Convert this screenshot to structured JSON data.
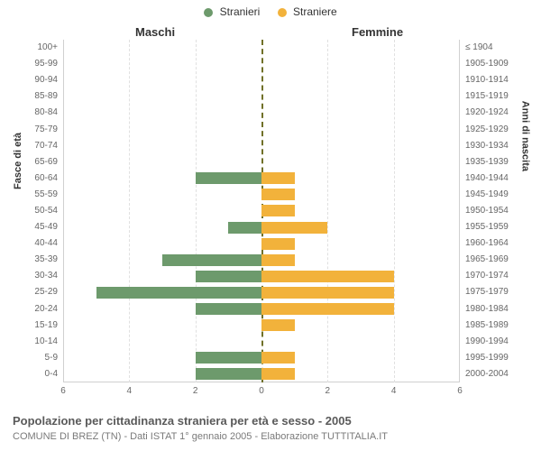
{
  "chart": {
    "type": "population-pyramid",
    "background_color": "#ffffff",
    "grid_color": "#e0e0e0",
    "axis_color": "#d0d0d0",
    "center_line_color": "#707028",
    "header_left": "Maschi",
    "header_right": "Femmine",
    "y_axis_title_left": "Fasce di età",
    "y_axis_title_right": "Anni di nascita",
    "x_max": 6,
    "x_ticks": [
      0,
      2,
      4,
      6
    ],
    "caption": "Popolazione per cittadinanza straniera per età e sesso - 2005",
    "subcaption": "COMUNE DI BREZ (TN) - Dati ISTAT 1° gennaio 2005 - Elaborazione TUTTITALIA.IT",
    "legend": [
      {
        "label": "Stranieri",
        "color": "#6d9a6c"
      },
      {
        "label": "Straniere",
        "color": "#f2b23b"
      }
    ],
    "bar_height_ratio": 0.72,
    "label_fontsize": 10,
    "title_fontsize": 13,
    "rows": [
      {
        "age": "100+",
        "year": "≤ 1904",
        "m": 0,
        "f": 0
      },
      {
        "age": "95-99",
        "year": "1905-1909",
        "m": 0,
        "f": 0
      },
      {
        "age": "90-94",
        "year": "1910-1914",
        "m": 0,
        "f": 0
      },
      {
        "age": "85-89",
        "year": "1915-1919",
        "m": 0,
        "f": 0
      },
      {
        "age": "80-84",
        "year": "1920-1924",
        "m": 0,
        "f": 0
      },
      {
        "age": "75-79",
        "year": "1925-1929",
        "m": 0,
        "f": 0
      },
      {
        "age": "70-74",
        "year": "1930-1934",
        "m": 0,
        "f": 0
      },
      {
        "age": "65-69",
        "year": "1935-1939",
        "m": 0,
        "f": 0
      },
      {
        "age": "60-64",
        "year": "1940-1944",
        "m": 2,
        "f": 1
      },
      {
        "age": "55-59",
        "year": "1945-1949",
        "m": 0,
        "f": 1
      },
      {
        "age": "50-54",
        "year": "1950-1954",
        "m": 0,
        "f": 1
      },
      {
        "age": "45-49",
        "year": "1955-1959",
        "m": 1,
        "f": 2
      },
      {
        "age": "40-44",
        "year": "1960-1964",
        "m": 0,
        "f": 1
      },
      {
        "age": "35-39",
        "year": "1965-1969",
        "m": 3,
        "f": 1
      },
      {
        "age": "30-34",
        "year": "1970-1974",
        "m": 2,
        "f": 4
      },
      {
        "age": "25-29",
        "year": "1975-1979",
        "m": 5,
        "f": 4
      },
      {
        "age": "20-24",
        "year": "1980-1984",
        "m": 2,
        "f": 4
      },
      {
        "age": "15-19",
        "year": "1985-1989",
        "m": 0,
        "f": 1
      },
      {
        "age": "10-14",
        "year": "1990-1994",
        "m": 0,
        "f": 0
      },
      {
        "age": "5-9",
        "year": "1995-1999",
        "m": 2,
        "f": 1
      },
      {
        "age": "0-4",
        "year": "2000-2004",
        "m": 2,
        "f": 1
      }
    ]
  }
}
